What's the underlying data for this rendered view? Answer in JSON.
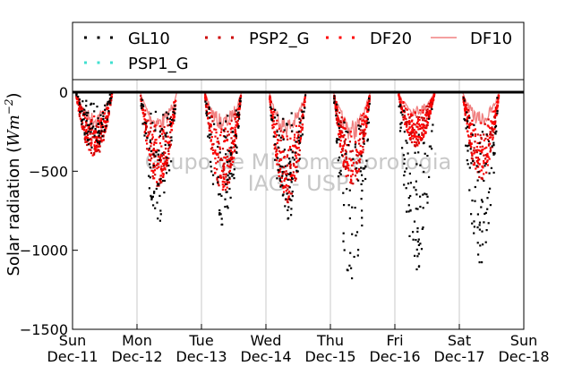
{
  "chart_data": {
    "type": "scatter",
    "ylabel": "Solar radiation (Wm⁻²)",
    "ylabel_main": "Solar radiation (",
    "ylabel_unit": "Wm",
    "ylabel_exp": "−2",
    "ylabel_close": ")",
    "ylim": [
      -1500,
      80
    ],
    "yticks": [
      0,
      -500,
      -1000,
      -1500
    ],
    "ytick_labels": [
      "0",
      "−500",
      "−1000",
      "−1500"
    ],
    "xlim": [
      0,
      7
    ],
    "grid": "vertical",
    "x_ticks": [
      {
        "x": 0,
        "day": "Sun",
        "date": "Dec-11"
      },
      {
        "x": 1,
        "day": "Mon",
        "date": "Dec-12"
      },
      {
        "x": 2,
        "day": "Tue",
        "date": "Dec-13"
      },
      {
        "x": 3,
        "day": "Wed",
        "date": "Dec-14"
      },
      {
        "x": 4,
        "day": "Thu",
        "date": "Dec-15"
      },
      {
        "x": 5,
        "day": "Fri",
        "date": "Dec-16"
      },
      {
        "x": 6,
        "day": "Sat",
        "date": "Dec-17"
      },
      {
        "x": 7,
        "day": "Sun",
        "date": "Dec-18"
      }
    ],
    "legend_placement": "top",
    "watermark": [
      "Grupo de Micrometeorologia",
      "IAG - USP"
    ],
    "series": [
      {
        "name": "GL10",
        "style": "dots",
        "color": "#000000",
        "days": [
          {
            "x": 0.25,
            "min": -370
          },
          {
            "x": 1.25,
            "min": -820
          },
          {
            "x": 2.25,
            "min": -880
          },
          {
            "x": 3.25,
            "min": -810
          },
          {
            "x": 4.25,
            "min": -1210
          },
          {
            "x": 5.25,
            "min": -1150
          },
          {
            "x": 6.25,
            "min": -1090
          }
        ]
      },
      {
        "name": "PSP2_G",
        "style": "dots",
        "color": "#cc0000",
        "days": [
          {
            "x": 0.25,
            "min": -420
          },
          {
            "x": 1.25,
            "min": -600
          },
          {
            "x": 2.25,
            "min": -650
          },
          {
            "x": 3.25,
            "min": -700
          },
          {
            "x": 4.25,
            "min": -600
          },
          {
            "x": 5.25,
            "min": -350
          },
          {
            "x": 6.25,
            "min": -560
          }
        ]
      },
      {
        "name": "DF20",
        "style": "dots",
        "color": "#ff0000",
        "days": [
          {
            "x": 0.25,
            "min": -410
          },
          {
            "x": 1.25,
            "min": -580
          },
          {
            "x": 2.25,
            "min": -640
          },
          {
            "x": 3.25,
            "min": -690
          },
          {
            "x": 4.25,
            "min": -590
          },
          {
            "x": 5.25,
            "min": -340
          },
          {
            "x": 6.25,
            "min": -550
          }
        ]
      },
      {
        "name": "DF10",
        "style": "line",
        "color": "#f08080",
        "days": [
          {
            "x": 0.25,
            "min": -220
          },
          {
            "x": 1.25,
            "min": -250
          },
          {
            "x": 2.25,
            "min": -250
          },
          {
            "x": 3.25,
            "min": -280
          },
          {
            "x": 4.25,
            "min": -310
          },
          {
            "x": 5.25,
            "min": -150
          },
          {
            "x": 6.25,
            "min": -220
          }
        ]
      },
      {
        "name": "PSP1_G",
        "style": "dots",
        "color": "#40e0d0",
        "days": []
      }
    ]
  }
}
